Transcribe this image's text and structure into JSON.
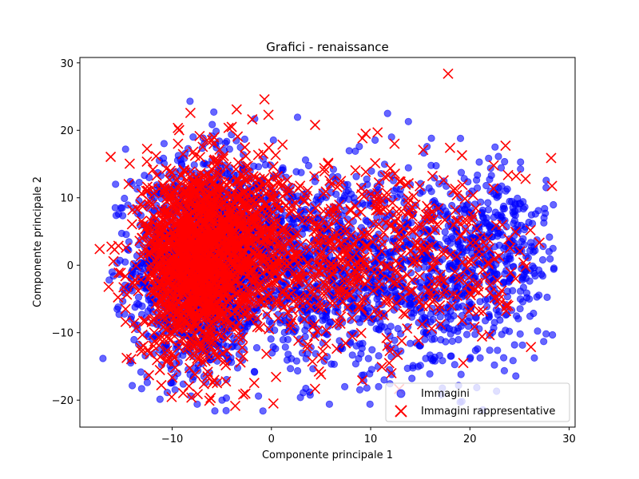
{
  "chart_data": {
    "type": "scatter",
    "title": "Grafici - renaissance",
    "xlabel": "Componente principale 1",
    "ylabel": "Componente principale 2",
    "xlim": [
      -19.3,
      30.6
    ],
    "ylim": [
      -24.0,
      30.8
    ],
    "x_ticks": [
      -10,
      0,
      10,
      20,
      30
    ],
    "y_ticks": [
      -20,
      -10,
      0,
      10,
      20,
      30
    ],
    "x_tick_labels": [
      "−10",
      "0",
      "10",
      "20",
      "30"
    ],
    "y_tick_labels": [
      "−20",
      "−10",
      "0",
      "10",
      "20",
      "30"
    ],
    "grid": false,
    "legend_position": "lower-right",
    "series": [
      {
        "name": "Immagini",
        "marker": "circle",
        "color": "#0000ff",
        "opacity": 0.6,
        "clusters": [
          {
            "cx": -7.5,
            "cy": 0.0,
            "sx": 3.2,
            "sy": 7.5,
            "n": 1600
          },
          {
            "cx": -2.0,
            "cy": 3.0,
            "sx": 3.5,
            "sy": 6.5,
            "n": 700
          },
          {
            "cx": 7.0,
            "cy": -1.0,
            "sx": 5.0,
            "sy": 7.0,
            "n": 600
          },
          {
            "cx": 17.0,
            "cy": -2.0,
            "sx": 5.5,
            "sy": 7.0,
            "n": 650
          },
          {
            "cx": 23.0,
            "cy": 4.0,
            "sx": 3.0,
            "sy": 5.0,
            "n": 200
          }
        ],
        "points": [
          {
            "x": -8.2,
            "y": 24.3
          },
          {
            "x": -5.8,
            "y": 22.7
          },
          {
            "x": 11.7,
            "y": 22.5
          },
          {
            "x": 13.8,
            "y": 21.3
          },
          {
            "x": -14.7,
            "y": 17.2
          },
          {
            "x": 27.6,
            "y": 7.7
          },
          {
            "x": 26.9,
            "y": 8.1
          },
          {
            "x": 25.1,
            "y": 15.3
          },
          {
            "x": -5.7,
            "y": -21.6
          },
          {
            "x": -8.1,
            "y": -19.4
          },
          {
            "x": -1.3,
            "y": -19.4
          },
          {
            "x": 3.2,
            "y": -18.9
          },
          {
            "x": 22.0,
            "y": -12.6
          },
          {
            "x": -15.7,
            "y": 12.0
          }
        ]
      },
      {
        "name": "Immagini rappresentative",
        "marker": "x",
        "color": "#ff0000",
        "clusters": [
          {
            "cx": -7.8,
            "cy": 0.5,
            "sx": 2.6,
            "sy": 7.2,
            "n": 1300
          },
          {
            "cx": -2.5,
            "cy": 4.0,
            "sx": 3.0,
            "sy": 6.0,
            "n": 500
          },
          {
            "cx": 6.5,
            "cy": 1.0,
            "sx": 4.5,
            "sy": 7.0,
            "n": 260
          },
          {
            "cx": 16.5,
            "cy": 1.0,
            "sx": 5.0,
            "sy": 7.0,
            "n": 240
          }
        ],
        "points": [
          {
            "x": 17.8,
            "y": 28.4
          },
          {
            "x": -0.7,
            "y": 24.6
          },
          {
            "x": -3.5,
            "y": 23.1
          },
          {
            "x": -0.3,
            "y": 22.3
          },
          {
            "x": -4.0,
            "y": 20.5
          },
          {
            "x": 4.4,
            "y": 20.8
          },
          {
            "x": 9.5,
            "y": 19.5
          },
          {
            "x": 10.7,
            "y": 19.7
          },
          {
            "x": 12.4,
            "y": 18.0
          },
          {
            "x": 15.3,
            "y": 17.1
          },
          {
            "x": 22.4,
            "y": 14.8
          },
          {
            "x": -17.3,
            "y": 2.4
          },
          {
            "x": -16.4,
            "y": -3.2
          },
          {
            "x": -14.7,
            "y": -6.5
          },
          {
            "x": 25.4,
            "y": 0.4
          },
          {
            "x": 26.1,
            "y": 5.2
          },
          {
            "x": 0.2,
            "y": -20.5
          },
          {
            "x": 12.1,
            "y": -16.0
          },
          {
            "x": -13.0,
            "y": -10.3
          },
          {
            "x": 5.0,
            "y": -16.2
          },
          {
            "x": 18.0,
            "y": 17.4
          },
          {
            "x": 19.2,
            "y": 16.3
          }
        ]
      }
    ]
  }
}
